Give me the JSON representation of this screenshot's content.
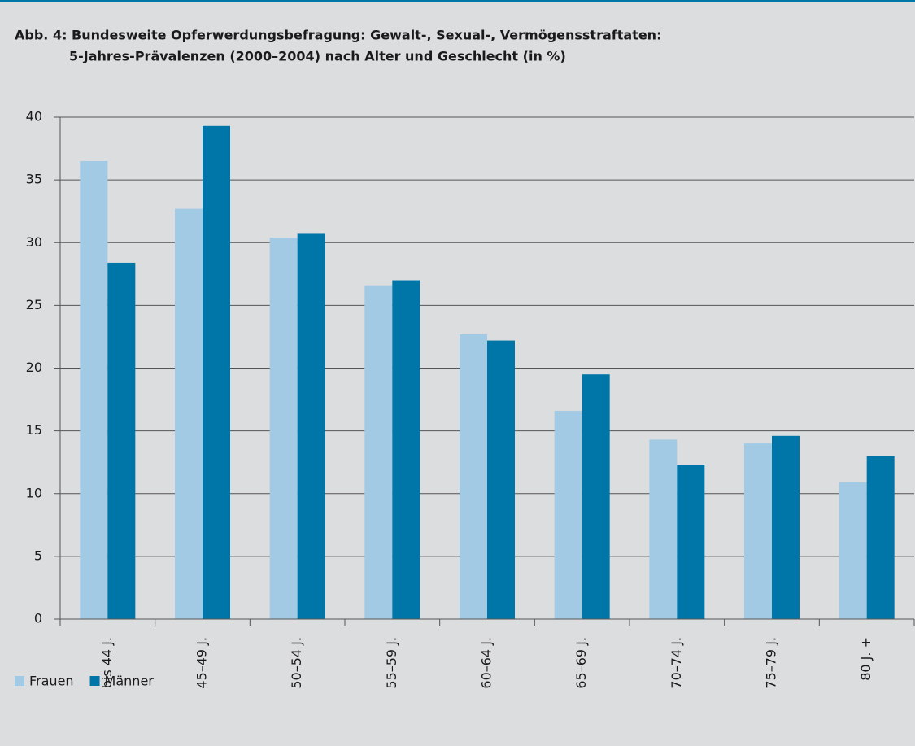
{
  "chart_data": {
    "type": "bar",
    "title": [
      "Abb. 4: Bundesweite Opferwerdungsbefragung: Gewalt-, Sexual-, Vermögensstraftaten:",
      "5-Jahres-Prävalenzen (2000–2004) nach Alter und Geschlecht (in %)"
    ],
    "categories": [
      "bis 44 J.",
      "45–49 J.",
      "50–54 J.",
      "55–59 J.",
      "60–64 J.",
      "65–69 J.",
      "70–74 J.",
      "75–79 J.",
      "80 J. +"
    ],
    "series": [
      {
        "name": "Frauen",
        "color": "#a3cae5",
        "values": [
          36.5,
          32.7,
          30.4,
          26.6,
          22.7,
          16.6,
          14.3,
          14.0,
          10.9
        ]
      },
      {
        "name": "Männer",
        "color": "#0076a8",
        "values": [
          28.4,
          39.3,
          30.7,
          27.0,
          22.2,
          19.5,
          12.3,
          14.6,
          13.0
        ]
      }
    ],
    "ylim": [
      0,
      40
    ],
    "yticks": [
      0,
      5,
      10,
      15,
      20,
      25,
      30,
      35,
      40
    ],
    "grid": true,
    "legend": "bottom-left"
  }
}
